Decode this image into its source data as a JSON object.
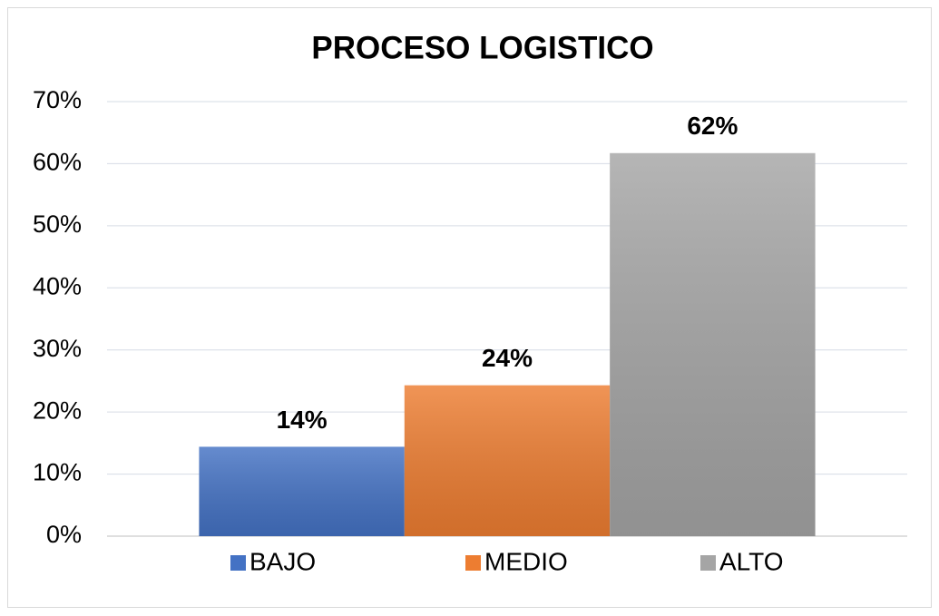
{
  "chart_data": {
    "type": "bar",
    "title": "PROCESO LOGISTICO",
    "series": [
      {
        "name": "BAJO",
        "color": "#4472c4",
        "values": [
          14.4
        ],
        "value_labels": [
          "14%"
        ]
      },
      {
        "name": "MEDIO",
        "color": "#ed7d31",
        "values": [
          24.3
        ],
        "value_labels": [
          "24%"
        ]
      },
      {
        "name": "ALTO",
        "color": "#a5a5a5",
        "values": [
          61.7
        ],
        "value_labels": [
          "62%"
        ]
      }
    ],
    "ylim": [
      0,
      70
    ],
    "yticks": [
      {
        "value": 0,
        "label": "0%"
      },
      {
        "value": 10,
        "label": "10%"
      },
      {
        "value": 20,
        "label": "20%"
      },
      {
        "value": 30,
        "label": "30%"
      },
      {
        "value": 40,
        "label": "40%"
      },
      {
        "value": 50,
        "label": "50%"
      },
      {
        "value": 60,
        "label": "60%"
      },
      {
        "value": 70,
        "label": "70%"
      }
    ],
    "grid": true,
    "legend": "bottom"
  }
}
